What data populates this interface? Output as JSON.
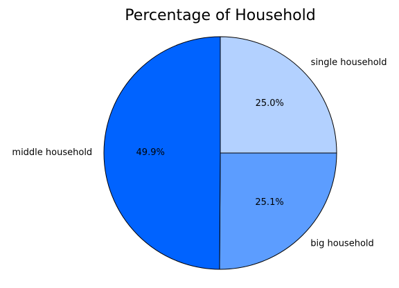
{
  "chart_data": {
    "type": "pie",
    "title": "Percentage of Household",
    "categories": [
      "single household",
      "big household",
      "middle household"
    ],
    "values": [
      25.0,
      25.1,
      49.9
    ],
    "percent_labels": [
      "25.0%",
      "25.1%",
      "49.9%"
    ],
    "colors": [
      "#b3d1ff",
      "#5c9dff",
      "#0063ff"
    ],
    "start_angle_deg": 90,
    "direction": "clockwise",
    "legend": "none"
  }
}
